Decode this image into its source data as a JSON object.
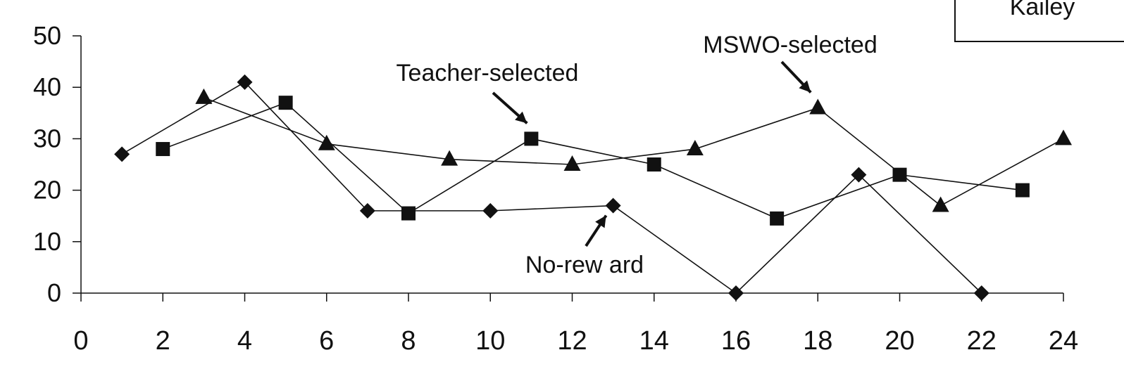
{
  "chart_data": {
    "type": "line",
    "title": "",
    "xlabel": "",
    "ylabel": "",
    "xlim": [
      0,
      24
    ],
    "ylim": [
      0,
      50
    ],
    "x_ticks": [
      0,
      2,
      4,
      6,
      8,
      10,
      12,
      14,
      16,
      18,
      20,
      22,
      24
    ],
    "y_ticks": [
      0,
      10,
      20,
      30,
      40,
      50
    ],
    "grid": false,
    "participant_label": "Kailey",
    "series": [
      {
        "name": "No-rew ard",
        "marker": "diamond",
        "x": [
          1,
          4,
          7,
          10,
          13,
          16,
          19,
          22
        ],
        "y": [
          27,
          41,
          16,
          16,
          17,
          0,
          23,
          0
        ]
      },
      {
        "name": "Teacher-selected",
        "marker": "square",
        "x": [
          2,
          5,
          8,
          11,
          14,
          17,
          20,
          23
        ],
        "y": [
          28,
          37,
          15.5,
          30,
          25,
          14.5,
          23,
          20
        ]
      },
      {
        "name": "MSWO-selected",
        "marker": "triangle",
        "x": [
          3,
          6,
          9,
          12,
          15,
          18,
          21,
          24
        ],
        "y": [
          38,
          29,
          26,
          25,
          28,
          36,
          17,
          30
        ]
      }
    ],
    "annotations": [
      {
        "text": "Teacher-selected",
        "target_series": 1,
        "target_x": 11,
        "target_y": 30
      },
      {
        "text": "MSWO-selected",
        "target_series": 2,
        "target_x": 18,
        "target_y": 36
      },
      {
        "text": "No-rew ard",
        "target_series": 0,
        "target_x": 13,
        "target_y": 17
      }
    ],
    "colors": {
      "ink": "#111111"
    }
  }
}
